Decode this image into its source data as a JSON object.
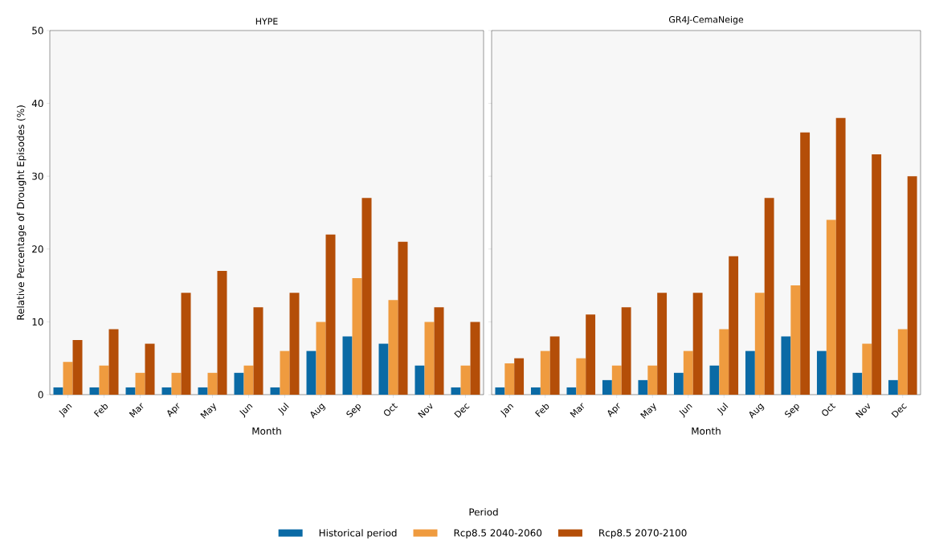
{
  "chart_data": [
    {
      "type": "bar",
      "title": "HYPE",
      "xlabel": "Month",
      "ylabel": "Relative Percentage of Drought Episodes (%)",
      "legend": "bottom",
      "legend_title": "Period",
      "categories": [
        "Jan",
        "Feb",
        "Mar",
        "Apr",
        "May",
        "Jun",
        "Jul",
        "Aug",
        "Sep",
        "Oct",
        "Nov",
        "Dec"
      ],
      "ylim": [
        0,
        50
      ],
      "yticks": [
        0,
        10,
        20,
        30,
        40,
        50
      ],
      "series": [
        {
          "name": "Historical period",
          "color": "#0a6aa5",
          "values": [
            1,
            1,
            1,
            1,
            1,
            3,
            1,
            6,
            8,
            7,
            4,
            1
          ]
        },
        {
          "name": "Rcp8.5 2040-2060",
          "color": "#ef9b3f",
          "values": [
            4.5,
            4,
            3,
            3,
            3,
            4,
            6,
            10,
            16,
            13,
            10,
            4
          ]
        },
        {
          "name": "Rcp8.5 2070-2100",
          "color": "#b44e08",
          "values": [
            7.5,
            9,
            7,
            14,
            17,
            12,
            14,
            22,
            27,
            21,
            12,
            10
          ]
        }
      ]
    },
    {
      "type": "bar",
      "title": "GR4J-CemaNeige",
      "xlabel": "Month",
      "tick_labels": "x",
      "categories": [
        "Jan",
        "Feb",
        "Mar",
        "Apr",
        "May",
        "Jun",
        "Jul",
        "Aug",
        "Sep",
        "Oct",
        "Nov",
        "Dec"
      ],
      "ylim": [
        0,
        50
      ],
      "yticks": [
        0,
        10,
        20,
        30,
        40,
        50
      ],
      "series": [
        {
          "color": "#0a6aa5",
          "values": [
            1,
            1,
            1,
            2,
            2,
            3,
            4,
            6,
            8,
            6,
            3,
            2
          ]
        },
        {
          "color": "#ef9b3f",
          "values": [
            4.3,
            6,
            5,
            4,
            4,
            6,
            9,
            14,
            15,
            24,
            7,
            9
          ]
        },
        {
          "color": "#b44e08",
          "values": [
            5,
            8,
            11,
            12,
            14,
            14,
            19,
            27,
            36,
            38,
            33,
            30
          ]
        }
      ]
    }
  ]
}
